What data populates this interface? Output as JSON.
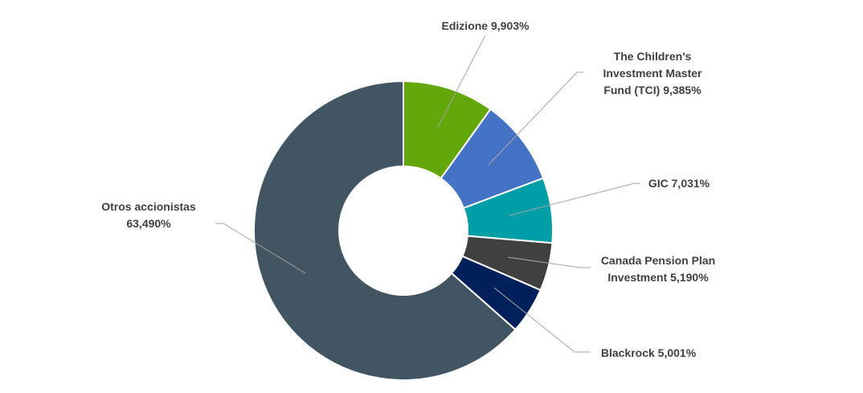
{
  "chart_data": {
    "type": "donut",
    "categories": [
      "Edizione",
      "The Children's Investment Master Fund (TCI)",
      "GIC",
      "Canada Pension Plan Investment",
      "Blackrock",
      "Otros accionistas"
    ],
    "values": [
      9.903,
      9.385,
      7.031,
      5.19,
      5.001,
      63.49
    ],
    "value_labels": [
      "9,903%",
      "9,385%",
      "7,031%",
      "5,190%",
      "5,001%",
      "63,490%"
    ],
    "colors": [
      "#63a70a",
      "#4472c4",
      "#009fa8",
      "#404040",
      "#00205b",
      "#425563"
    ]
  }
}
